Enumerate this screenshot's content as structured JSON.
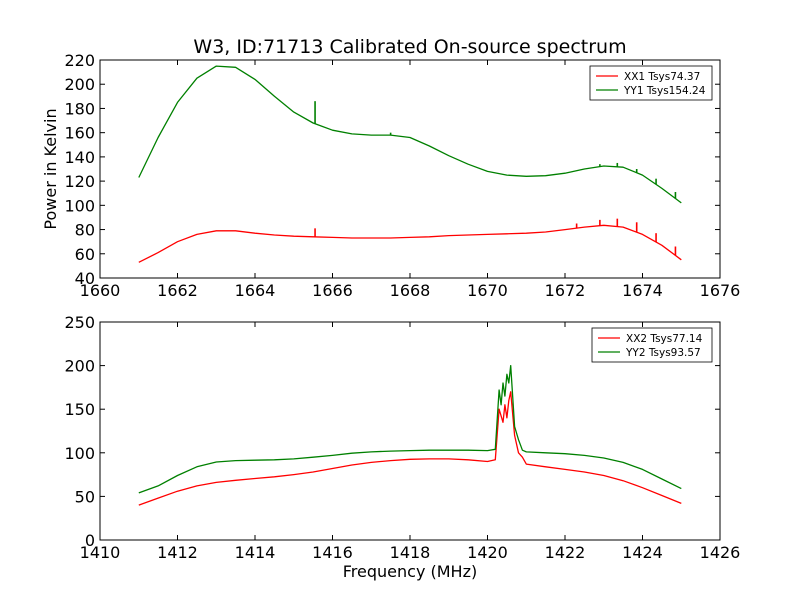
{
  "title": "W3, ID:71713 Calibrated On-source spectrum",
  "chart_data": [
    {
      "type": "line",
      "title": "W3, ID:71713 Calibrated On-source spectrum",
      "xlabel": "",
      "ylabel": "Power in Kelvin",
      "xlim": [
        1660,
        1676
      ],
      "ylim": [
        40,
        220
      ],
      "xticks": [
        "1660",
        "1662",
        "1664",
        "1666",
        "1668",
        "1670",
        "1672",
        "1674",
        "1676"
      ],
      "yticks": [
        "40",
        "60",
        "80",
        "100",
        "120",
        "140",
        "160",
        "180",
        "200",
        "220"
      ],
      "legend_position": "top-right",
      "grid": false,
      "series": [
        {
          "name": "XX1 Tsys74.37",
          "color": "#ff0000",
          "x": [
            1661.0,
            1661.5,
            1662.0,
            1662.5,
            1663.0,
            1663.5,
            1664.0,
            1664.5,
            1665.0,
            1665.5,
            1666.0,
            1666.5,
            1667.0,
            1667.5,
            1668.0,
            1668.5,
            1669.0,
            1669.5,
            1670.0,
            1670.5,
            1671.0,
            1671.5,
            1672.0,
            1672.5,
            1673.0,
            1673.5,
            1674.0,
            1674.5,
            1675.0
          ],
          "y": [
            53,
            61,
            70,
            76,
            79,
            79,
            77,
            75.5,
            74.5,
            74,
            73.5,
            73,
            73,
            73,
            73.5,
            74,
            75,
            75.5,
            76,
            76.5,
            77,
            78,
            80,
            82,
            83.5,
            82,
            76,
            67,
            55
          ],
          "spikes": [
            {
              "x": 1665.55,
              "y": 81
            },
            {
              "x": 1672.3,
              "y": 85
            },
            {
              "x": 1672.9,
              "y": 88
            },
            {
              "x": 1673.35,
              "y": 89
            },
            {
              "x": 1673.85,
              "y": 86
            },
            {
              "x": 1674.35,
              "y": 77
            },
            {
              "x": 1674.85,
              "y": 66
            }
          ]
        },
        {
          "name": "YY1 Tsys154.24",
          "color": "#008000",
          "x": [
            1661.0,
            1661.5,
            1662.0,
            1662.5,
            1663.0,
            1663.5,
            1664.0,
            1664.5,
            1665.0,
            1665.5,
            1666.0,
            1666.5,
            1667.0,
            1667.5,
            1668.0,
            1668.5,
            1669.0,
            1669.5,
            1670.0,
            1670.5,
            1671.0,
            1671.5,
            1672.0,
            1672.5,
            1673.0,
            1673.5,
            1674.0,
            1674.5,
            1675.0
          ],
          "y": [
            123,
            156,
            185,
            205,
            215,
            214,
            204,
            190,
            177,
            168,
            162,
            159,
            158,
            158,
            156,
            149,
            141,
            134,
            128,
            125,
            124,
            124.5,
            126.5,
            130,
            132.5,
            131.5,
            125,
            114,
            102
          ],
          "spikes": [
            {
              "x": 1665.55,
              "y": 186
            },
            {
              "x": 1667.5,
              "y": 160
            },
            {
              "x": 1672.9,
              "y": 134
            },
            {
              "x": 1673.35,
              "y": 135
            },
            {
              "x": 1673.85,
              "y": 130
            },
            {
              "x": 1674.35,
              "y": 122
            },
            {
              "x": 1674.85,
              "y": 111
            }
          ]
        }
      ]
    },
    {
      "type": "line",
      "title": "",
      "xlabel": "Frequency (MHz)",
      "ylabel": "",
      "xlim": [
        1410,
        1426
      ],
      "ylim": [
        0,
        250
      ],
      "xticks": [
        "1410",
        "1412",
        "1414",
        "1416",
        "1418",
        "1420",
        "1422",
        "1424",
        "1426"
      ],
      "yticks": [
        "0",
        "50",
        "100",
        "150",
        "200",
        "250"
      ],
      "legend_position": "top-right",
      "grid": false,
      "series": [
        {
          "name": "XX2 Tsys77.14",
          "color": "#ff0000",
          "x": [
            1411.0,
            1411.5,
            1412.0,
            1412.5,
            1413.0,
            1413.5,
            1414.0,
            1414.5,
            1415.0,
            1415.5,
            1416.0,
            1416.5,
            1417.0,
            1417.5,
            1418.0,
            1418.5,
            1419.0,
            1419.5,
            1420.0,
            1420.2,
            1420.3,
            1420.4,
            1420.45,
            1420.5,
            1420.55,
            1420.6,
            1420.7,
            1420.8,
            1420.9,
            1421.0,
            1421.5,
            1422.0,
            1422.5,
            1423.0,
            1423.5,
            1424.0,
            1424.5,
            1425.0
          ],
          "y": [
            40,
            48,
            56,
            62,
            66,
            68.5,
            70.5,
            72.5,
            75,
            78,
            82,
            86,
            89,
            91,
            92.5,
            93,
            93,
            92,
            90,
            92,
            150,
            135,
            155,
            140,
            160,
            170,
            120,
            100,
            95,
            87,
            84,
            81,
            78,
            74,
            68,
            60,
            51,
            42
          ]
        },
        {
          "name": "YY2 Tsys93.57",
          "color": "#008000",
          "x": [
            1411.0,
            1411.5,
            1412.0,
            1412.5,
            1413.0,
            1413.5,
            1414.0,
            1414.5,
            1415.0,
            1415.5,
            1416.0,
            1416.5,
            1417.0,
            1417.5,
            1418.0,
            1418.5,
            1419.0,
            1419.5,
            1420.0,
            1420.2,
            1420.3,
            1420.35,
            1420.4,
            1420.45,
            1420.5,
            1420.55,
            1420.6,
            1420.7,
            1420.8,
            1420.9,
            1421.0,
            1421.5,
            1422.0,
            1422.5,
            1423.0,
            1423.5,
            1424.0,
            1424.5,
            1425.0
          ],
          "y": [
            54,
            62,
            74,
            84,
            89.5,
            91,
            91.5,
            92,
            93,
            95,
            97,
            99.5,
            101,
            102,
            102.5,
            103,
            103,
            103,
            102.5,
            104,
            172,
            155,
            180,
            165,
            190,
            180,
            200,
            130,
            115,
            103,
            101,
            100,
            99,
            97,
            94,
            89,
            81,
            70,
            59
          ]
        }
      ]
    }
  ]
}
